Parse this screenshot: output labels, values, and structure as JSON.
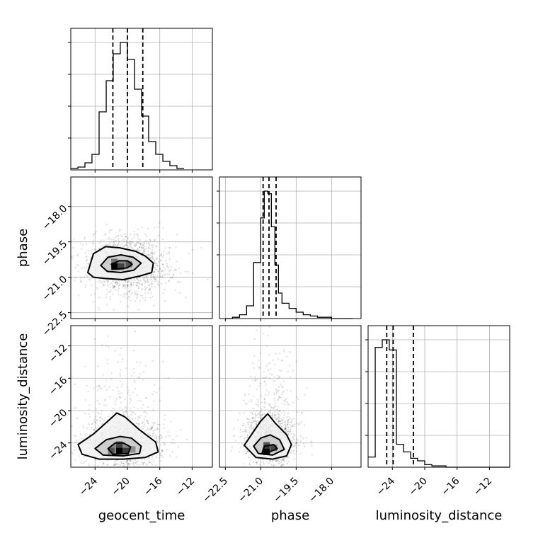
{
  "chart_data": {
    "type": "corner",
    "parameters": [
      {
        "name": "geocent_time",
        "xlabel": "geocent_time",
        "ylabel": "",
        "range": [
          -27.0,
          -9.5
        ],
        "ticks": [
          -24,
          -20,
          -16,
          -12
        ],
        "tick_labels": [
          "−24",
          "−20",
          "−16",
          "−12"
        ],
        "quantiles": [
          -21.8,
          -20.0,
          -18.1
        ]
      },
      {
        "name": "phase",
        "xlabel": "phase",
        "ylabel": "phase",
        "range": [
          -22.75,
          -16.75
        ],
        "ticks": [
          -22.5,
          -21.0,
          -19.5,
          -18.0
        ],
        "tick_labels": [
          "−22.5",
          "−21.0",
          "−19.5",
          "−18.0"
        ],
        "quantiles": [
          -20.9,
          -20.65,
          -20.35
        ]
      },
      {
        "name": "luminosity_distance",
        "xlabel": "luminosity_distance",
        "ylabel": "luminosity_distance",
        "range": [
          -27.0,
          -9.5
        ],
        "ticks": [
          -24,
          -20,
          -16,
          -12
        ],
        "tick_labels": [
          "−24",
          "−20",
          "−16",
          "−12"
        ],
        "quantiles": [
          -24.7,
          -23.9,
          -21.4
        ]
      }
    ],
    "histograms": [
      {
        "param": "geocent_time",
        "bins": [
          -27.0,
          -26.12,
          -25.25,
          -24.38,
          -23.5,
          -22.62,
          -21.75,
          -20.88,
          -20.0,
          -19.12,
          -18.25,
          -17.38,
          -16.5,
          -15.62,
          -14.75,
          -13.88,
          -13.0
        ],
        "counts": [
          1,
          2,
          5,
          11,
          41,
          63,
          82,
          90,
          78,
          57,
          38,
          20,
          11,
          6,
          3,
          1
        ]
      },
      {
        "param": "phase",
        "bins": [
          -22.5,
          -22.2,
          -21.9,
          -21.6,
          -21.3,
          -21.0,
          -20.85,
          -20.7,
          -20.55,
          -20.4,
          -20.25,
          -20.1,
          -19.8,
          -19.5,
          -19.2,
          -18.9,
          -18.6,
          -18.3,
          -18.0,
          -17.7,
          -17.4,
          -17.1
        ],
        "counts": [
          0,
          1,
          3,
          10,
          44,
          79,
          100,
          98,
          72,
          42,
          20,
          12,
          8,
          5,
          3,
          2,
          1,
          1,
          0,
          0,
          0
        ]
      },
      {
        "param": "luminosity_distance",
        "bins": [
          -27.0,
          -26.12,
          -25.25,
          -24.38,
          -23.5,
          -22.62,
          -21.75,
          -20.88,
          -20.0,
          -19.12,
          -18.25,
          -17.38,
          -16.5,
          -15.62,
          -14.75,
          -13.88,
          -13.0,
          -12.12,
          -11.25,
          -10.38,
          -9.5
        ],
        "counts": [
          8,
          94,
          100,
          92,
          18,
          12,
          7,
          5,
          2,
          1,
          1,
          0,
          0,
          0,
          0,
          0,
          0,
          0,
          0,
          0
        ]
      }
    ],
    "scatter_panels": [
      {
        "x": "geocent_time",
        "y": "phase",
        "center": [
          -20.0,
          -20.5
        ],
        "spread": [
          2.6,
          0.65
        ],
        "contours": [
          [
            [
              -24.9,
              -20.8
            ],
            [
              -24.2,
              -20.0
            ],
            [
              -22.7,
              -19.7
            ],
            [
              -21.0,
              -19.75
            ],
            [
              -19.0,
              -19.9
            ],
            [
              -17.8,
              -20.1
            ],
            [
              -16.8,
              -20.4
            ],
            [
              -17.0,
              -20.8
            ],
            [
              -18.5,
              -20.95
            ],
            [
              -20.5,
              -21.1
            ],
            [
              -22.8,
              -21.05
            ],
            [
              -24.2,
              -21.0
            ]
          ],
          [
            [
              -23.3,
              -20.5
            ],
            [
              -22.4,
              -20.15
            ],
            [
              -20.8,
              -20.05
            ],
            [
              -19.3,
              -20.15
            ],
            [
              -18.3,
              -20.4
            ],
            [
              -19.2,
              -20.7
            ],
            [
              -20.8,
              -20.8
            ],
            [
              -22.5,
              -20.75
            ]
          ],
          [
            [
              -22.0,
              -20.45
            ],
            [
              -21.0,
              -20.3
            ],
            [
              -20.0,
              -20.3
            ],
            [
              -19.4,
              -20.45
            ],
            [
              -20.0,
              -20.6
            ],
            [
              -21.2,
              -20.65
            ]
          ]
        ],
        "bins_dark": [
          [
            -21.6,
            -20.55,
            1.0
          ],
          [
            -20.8,
            -20.55,
            0.5
          ],
          [
            -21.6,
            -20.35,
            0.45
          ],
          [
            -19.8,
            -20.45,
            0.35
          ]
        ]
      },
      {
        "x": "geocent_time",
        "y": "luminosity_distance",
        "center": [
          -20.5,
          -24.2
        ],
        "spread": [
          2.4,
          1.4
        ],
        "contours": [
          [
            [
              -26.1,
              -24.2
            ],
            [
              -24.2,
              -22.9
            ],
            [
              -22.3,
              -21.2
            ],
            [
              -21.3,
              -20.3
            ],
            [
              -20.3,
              -20.8
            ],
            [
              -18.6,
              -22.3
            ],
            [
              -16.5,
              -23.9
            ],
            [
              -16.2,
              -25.1
            ],
            [
              -17.8,
              -25.8
            ],
            [
              -20.5,
              -26.0
            ],
            [
              -23.5,
              -26.0
            ],
            [
              -25.6,
              -25.4
            ]
          ],
          [
            [
              -24.0,
              -24.7
            ],
            [
              -22.6,
              -23.6
            ],
            [
              -20.9,
              -23.2
            ],
            [
              -19.5,
              -23.4
            ],
            [
              -18.3,
              -24.4
            ],
            [
              -18.5,
              -25.3
            ],
            [
              -20.5,
              -25.6
            ],
            [
              -23.0,
              -25.5
            ]
          ],
          [
            [
              -22.4,
              -24.7
            ],
            [
              -21.5,
              -24.0
            ],
            [
              -20.5,
              -24.0
            ],
            [
              -19.6,
              -24.5
            ],
            [
              -19.9,
              -25.3
            ],
            [
              -21.8,
              -25.4
            ]
          ]
        ],
        "bins_dark": [
          [
            -21.0,
            -25.0,
            1.0
          ],
          [
            -20.2,
            -25.0,
            0.55
          ],
          [
            -21.0,
            -24.2,
            0.5
          ],
          [
            -22.0,
            -25.0,
            0.4
          ],
          [
            -19.4,
            -24.8,
            0.3
          ]
        ]
      },
      {
        "x": "phase",
        "y": "luminosity_distance",
        "center": [
          -20.6,
          -23.6
        ],
        "spread": [
          0.55,
          1.6
        ],
        "contours": [
          [
            [
              -21.7,
              -24.3
            ],
            [
              -21.4,
              -23.0
            ],
            [
              -21.0,
              -21.3
            ],
            [
              -20.7,
              -20.4
            ],
            [
              -20.4,
              -21.5
            ],
            [
              -19.9,
              -23.0
            ],
            [
              -19.7,
              -24.2
            ],
            [
              -19.9,
              -25.6
            ],
            [
              -20.5,
              -26.0
            ],
            [
              -21.2,
              -25.8
            ]
          ],
          [
            [
              -21.3,
              -24.4
            ],
            [
              -21.0,
              -23.4
            ],
            [
              -20.6,
              -23.0
            ],
            [
              -20.2,
              -23.6
            ],
            [
              -20.0,
              -24.8
            ],
            [
              -20.5,
              -25.5
            ],
            [
              -21.1,
              -25.3
            ]
          ],
          [
            [
              -20.95,
              -25.3
            ],
            [
              -20.85,
              -24.4
            ],
            [
              -20.45,
              -24.2
            ],
            [
              -20.3,
              -24.7
            ],
            [
              -20.7,
              -25.2
            ]
          ]
        ],
        "bins_dark": [
          [
            -20.75,
            -25.1,
            1.0
          ],
          [
            -20.75,
            -24.3,
            0.6
          ],
          [
            -20.45,
            -24.6,
            0.45
          ]
        ]
      }
    ],
    "grid": true,
    "quantile_line_style": "dashed"
  }
}
